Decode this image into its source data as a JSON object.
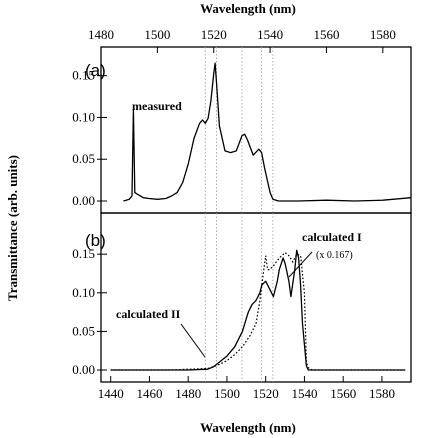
{
  "chart_data": {
    "type": "line",
    "top_axis_title": "Wavelength (nm)",
    "top_ticks": [
      1480,
      1500,
      1520,
      1540,
      1560,
      1580
    ],
    "top_xlim": [
      1480,
      1590
    ],
    "bottom_axis_title": "Wavelength (nm)",
    "bottom_ticks": [
      1440,
      1460,
      1480,
      1500,
      1520,
      1540,
      1560,
      1580
    ],
    "bottom_xlim": [
      1435,
      1595
    ],
    "ylabel": "Transmittance (arb. units)",
    "reference_lines": [
      1517,
      1521,
      1530,
      1537,
      1541
    ],
    "panels": [
      {
        "tag": "(a)",
        "ylim": [
          0,
          0.17
        ],
        "yticks": [
          {
            "v": 0.15,
            "label": "0.15"
          },
          {
            "v": 0.1,
            "label": "0.10"
          },
          {
            "v": 0.05,
            "label": "0.05"
          },
          {
            "v": 0.0,
            "label": "0.00"
          }
        ],
        "annotations": [
          {
            "text": "measured"
          }
        ],
        "series": [
          {
            "name": "measured",
            "style": "solid",
            "x": [
              1488,
              1490,
              1491,
              1491.5,
              1492,
              1493,
              1495,
              1497,
              1500,
              1503,
              1505,
              1507,
              1509,
              1511,
              1513,
              1515,
              1516,
              1517,
              1518,
              1519,
              1520,
              1520.5,
              1521,
              1522,
              1524,
              1526,
              1528,
              1530,
              1531,
              1532,
              1534,
              1536,
              1537,
              1538,
              1540,
              1541,
              1543,
              1550,
              1560,
              1570,
              1580,
              1590
            ],
            "y": [
              0.0,
              0.002,
              0.006,
              0.11,
              0.01,
              0.008,
              0.004,
              0.003,
              0.002,
              0.003,
              0.006,
              0.01,
              0.022,
              0.045,
              0.075,
              0.093,
              0.097,
              0.093,
              0.099,
              0.12,
              0.152,
              0.165,
              0.142,
              0.09,
              0.06,
              0.058,
              0.06,
              0.078,
              0.08,
              0.073,
              0.055,
              0.062,
              0.058,
              0.04,
              0.01,
              0.002,
              0.0,
              0.0,
              0.001,
              0.0,
              0.001,
              0.004
            ]
          }
        ]
      },
      {
        "tag": "(b)",
        "ylim": [
          0,
          0.18
        ],
        "yticks": [
          {
            "v": 0.15,
            "label": "0.15"
          },
          {
            "v": 0.1,
            "label": "0.10"
          },
          {
            "v": 0.05,
            "label": "0.05"
          },
          {
            "v": 0.0,
            "label": "0.00"
          }
        ],
        "annotations": [
          {
            "text": "calculated I"
          },
          {
            "text": "(x 0.167)"
          },
          {
            "text": "calculated II"
          }
        ],
        "series": [
          {
            "name": "calculated II",
            "style": "solid",
            "x": [
              1440,
              1460,
              1480,
              1490,
              1493,
              1496,
              1500,
              1504,
              1508,
              1511,
              1513,
              1515,
              1517,
              1518,
              1520,
              1522,
              1524,
              1526,
              1527,
              1529,
              1530,
              1532,
              1533,
              1535,
              1536,
              1537,
              1538,
              1539,
              1541,
              1542,
              1544,
              1550,
              1560,
              1570,
              1580,
              1592
            ],
            "y": [
              0.0,
              0.0,
              0.0,
              0.001,
              0.004,
              0.01,
              0.018,
              0.03,
              0.05,
              0.075,
              0.085,
              0.09,
              0.1,
              0.11,
              0.115,
              0.105,
              0.095,
              0.115,
              0.13,
              0.145,
              0.138,
              0.115,
              0.095,
              0.13,
              0.155,
              0.145,
              0.11,
              0.06,
              0.005,
              0.0,
              0.0,
              0.0,
              0.0,
              0.0,
              0.0,
              0.0
            ]
          },
          {
            "name": "calculated I",
            "style": "dotted",
            "x": [
              1440,
              1470,
              1490,
              1495,
              1500,
              1504,
              1508,
              1512,
              1515,
              1517,
              1519,
              1520,
              1521,
              1522,
              1524,
              1527,
              1530,
              1532,
              1534,
              1536,
              1538,
              1540,
              1541,
              1542,
              1544,
              1560,
              1592
            ],
            "y": [
              0.0,
              0.0,
              0.002,
              0.006,
              0.012,
              0.02,
              0.03,
              0.045,
              0.06,
              0.09,
              0.13,
              0.148,
              0.13,
              0.13,
              0.135,
              0.145,
              0.152,
              0.148,
              0.14,
              0.15,
              0.148,
              0.1,
              0.01,
              0.003,
              0.0,
              0.0,
              0.0
            ]
          }
        ]
      }
    ]
  }
}
